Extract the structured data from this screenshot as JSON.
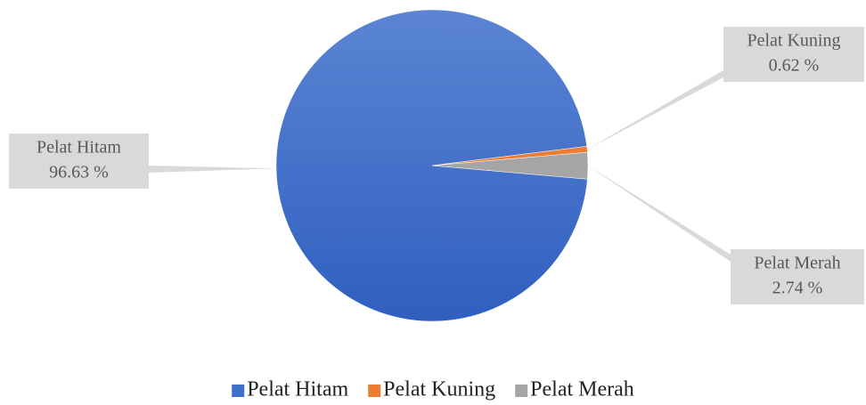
{
  "chart_data": {
    "type": "pie",
    "categories": [
      "Pelat Hitam",
      "Pelat Kuning",
      "Pelat Merah"
    ],
    "values": [
      96.63,
      0.62,
      2.74
    ],
    "value_labels": [
      "96.63 %",
      "0.62 %",
      "2.74 %"
    ],
    "colors": [
      "#3f6fcb",
      "#ed7d31",
      "#a5a5a5"
    ],
    "legend": "bottom"
  }
}
